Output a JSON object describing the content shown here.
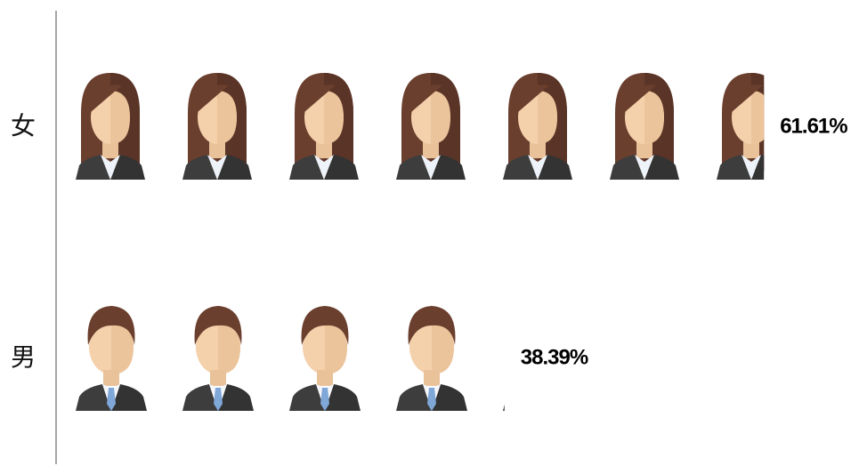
{
  "chart_data": {
    "type": "pictograph",
    "categories": [
      "女",
      "男"
    ],
    "values": [
      61.61,
      38.39
    ],
    "value_labels": [
      "61.61%",
      "38.39%"
    ]
  }
}
